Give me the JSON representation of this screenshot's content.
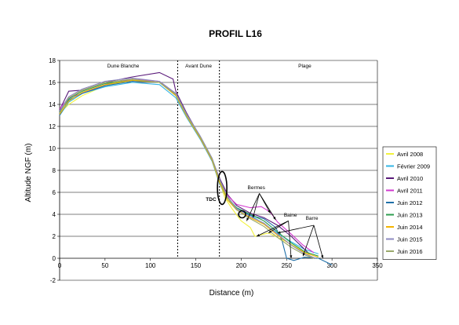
{
  "chart_data": {
    "type": "line",
    "title": "PROFIL L16",
    "xlabel": "Distance (m)",
    "ylabel": "Altitude NGF (m)",
    "xlim": [
      0,
      350
    ],
    "ylim": [
      -2,
      18
    ],
    "xticks": [
      0,
      50,
      100,
      150,
      200,
      250,
      300,
      350
    ],
    "yticks": [
      -2,
      0,
      2,
      4,
      6,
      8,
      10,
      12,
      14,
      16,
      18
    ],
    "grid": "horizontal",
    "legend_position": "right",
    "zones": [
      {
        "label": "Dune Blanche",
        "x_center": 70
      },
      {
        "label": "Avant Dune",
        "x_center": 153
      },
      {
        "label": "Plage",
        "x_center": 270
      }
    ],
    "zone_boundaries": [
      130,
      176
    ],
    "annotations": [
      "Bermes",
      "TDC",
      "Baine",
      "Barre"
    ],
    "series": [
      {
        "name": "Avril 2008",
        "color": "#f2f23c",
        "points": [
          [
            0,
            13.2
          ],
          [
            10,
            14.0
          ],
          [
            25,
            14.8
          ],
          [
            50,
            15.7
          ],
          [
            80,
            16.2
          ],
          [
            110,
            16.0
          ],
          [
            128,
            15.0
          ],
          [
            140,
            13.0
          ],
          [
            155,
            11.0
          ],
          [
            168,
            9.0
          ],
          [
            176,
            7.0
          ],
          [
            182,
            5.5
          ],
          [
            190,
            4.5
          ],
          [
            200,
            3.4
          ],
          [
            210,
            2.8
          ],
          [
            215,
            2.0
          ],
          [
            230,
            2.3
          ],
          [
            250,
            1.5
          ],
          [
            265,
            0.8
          ],
          [
            280,
            0.0
          ]
        ]
      },
      {
        "name": "Février 2009",
        "color": "#33b5e5",
        "points": [
          [
            0,
            13.0
          ],
          [
            10,
            14.2
          ],
          [
            25,
            15.0
          ],
          [
            50,
            15.6
          ],
          [
            80,
            16.0
          ],
          [
            110,
            15.8
          ],
          [
            128,
            14.6
          ],
          [
            140,
            12.8
          ],
          [
            155,
            10.8
          ],
          [
            168,
            8.8
          ],
          [
            176,
            6.8
          ],
          [
            185,
            5.3
          ],
          [
            195,
            4.6
          ],
          [
            205,
            4.2
          ],
          [
            220,
            3.4
          ],
          [
            240,
            2.3
          ],
          [
            255,
            1.5
          ],
          [
            270,
            0.8
          ],
          [
            285,
            0.4
          ]
        ]
      },
      {
        "name": "Avril 2010",
        "color": "#5a1a7a",
        "points": [
          [
            0,
            13.5
          ],
          [
            10,
            15.2
          ],
          [
            25,
            15.3
          ],
          [
            50,
            16.0
          ],
          [
            80,
            16.5
          ],
          [
            110,
            16.9
          ],
          [
            125,
            16.3
          ],
          [
            128,
            15.2
          ],
          [
            140,
            13.2
          ],
          [
            155,
            11.0
          ],
          [
            168,
            9.0
          ],
          [
            176,
            7.3
          ],
          [
            185,
            5.8
          ],
          [
            195,
            4.8
          ],
          [
            210,
            4.1
          ],
          [
            225,
            3.7
          ],
          [
            240,
            3.0
          ],
          [
            255,
            2.0
          ],
          [
            265,
            1.2
          ],
          [
            275,
            0.4
          ]
        ]
      },
      {
        "name": "Avril 2011",
        "color": "#d238cf",
        "points": [
          [
            0,
            13.6
          ],
          [
            10,
            14.6
          ],
          [
            25,
            15.0
          ],
          [
            50,
            15.8
          ],
          [
            80,
            16.3
          ],
          [
            110,
            16.1
          ],
          [
            128,
            15.0
          ],
          [
            140,
            13.0
          ],
          [
            155,
            10.9
          ],
          [
            168,
            8.9
          ],
          [
            176,
            7.1
          ],
          [
            185,
            5.7
          ],
          [
            195,
            4.9
          ],
          [
            210,
            4.6
          ],
          [
            222,
            4.7
          ],
          [
            232,
            4.2
          ],
          [
            240,
            3.3
          ],
          [
            255,
            2.2
          ],
          [
            268,
            1.2
          ],
          [
            280,
            0.5
          ]
        ]
      },
      {
        "name": "Juin 2012",
        "color": "#1f6fa8",
        "points": [
          [
            0,
            13.0
          ],
          [
            10,
            14.4
          ],
          [
            25,
            15.0
          ],
          [
            50,
            15.7
          ],
          [
            80,
            16.1
          ],
          [
            110,
            16.0
          ],
          [
            128,
            14.8
          ],
          [
            140,
            12.9
          ],
          [
            155,
            10.9
          ],
          [
            168,
            8.9
          ],
          [
            176,
            7.0
          ],
          [
            185,
            5.6
          ],
          [
            195,
            4.5
          ],
          [
            210,
            3.9
          ],
          [
            225,
            3.6
          ],
          [
            238,
            2.8
          ],
          [
            245,
            1.6
          ],
          [
            250,
            0.0
          ],
          [
            258,
            -0.2
          ],
          [
            270,
            0.1
          ],
          [
            285,
            0.0
          ],
          [
            300,
            -0.6
          ]
        ]
      },
      {
        "name": "Juin 2013",
        "color": "#2e9e4f",
        "points": [
          [
            0,
            13.3
          ],
          [
            10,
            14.5
          ],
          [
            25,
            15.2
          ],
          [
            50,
            15.9
          ],
          [
            80,
            16.2
          ],
          [
            110,
            16.0
          ],
          [
            128,
            14.9
          ],
          [
            140,
            13.0
          ],
          [
            155,
            11.0
          ],
          [
            168,
            9.0
          ],
          [
            176,
            7.0
          ],
          [
            185,
            5.5
          ],
          [
            195,
            4.6
          ],
          [
            210,
            4.0
          ],
          [
            225,
            3.4
          ],
          [
            240,
            2.4
          ],
          [
            255,
            1.4
          ],
          [
            270,
            0.6
          ],
          [
            285,
            0.2
          ]
        ]
      },
      {
        "name": "Juin 2014",
        "color": "#f5b400",
        "points": [
          [
            0,
            13.1
          ],
          [
            10,
            14.3
          ],
          [
            25,
            15.1
          ],
          [
            50,
            15.8
          ],
          [
            80,
            16.2
          ],
          [
            110,
            16.0
          ],
          [
            128,
            14.8
          ],
          [
            140,
            12.9
          ],
          [
            155,
            10.9
          ],
          [
            168,
            8.9
          ],
          [
            176,
            6.9
          ],
          [
            185,
            5.3
          ],
          [
            195,
            4.4
          ],
          [
            210,
            3.7
          ],
          [
            225,
            3.1
          ],
          [
            240,
            2.1
          ],
          [
            255,
            1.2
          ],
          [
            270,
            0.5
          ],
          [
            285,
            0.1
          ]
        ]
      },
      {
        "name": "Juin 2015",
        "color": "#8e8ac0",
        "points": [
          [
            0,
            13.4
          ],
          [
            10,
            14.7
          ],
          [
            25,
            15.4
          ],
          [
            50,
            16.1
          ],
          [
            80,
            16.4
          ],
          [
            110,
            16.1
          ],
          [
            128,
            15.0
          ],
          [
            140,
            13.1
          ],
          [
            155,
            11.1
          ],
          [
            168,
            9.1
          ],
          [
            176,
            7.2
          ],
          [
            185,
            5.6
          ],
          [
            195,
            4.5
          ],
          [
            210,
            3.8
          ],
          [
            225,
            3.2
          ],
          [
            240,
            2.2
          ],
          [
            255,
            1.2
          ],
          [
            270,
            0.4
          ],
          [
            282,
            0.0
          ]
        ]
      },
      {
        "name": "Juin 2016",
        "color": "#9aa86a",
        "points": [
          [
            0,
            13.2
          ],
          [
            10,
            14.6
          ],
          [
            25,
            15.3
          ],
          [
            50,
            16.0
          ],
          [
            80,
            16.3
          ],
          [
            110,
            16.0
          ],
          [
            128,
            14.9
          ],
          [
            140,
            13.0
          ],
          [
            155,
            11.0
          ],
          [
            168,
            9.0
          ],
          [
            176,
            7.1
          ],
          [
            185,
            5.5
          ],
          [
            195,
            4.4
          ],
          [
            210,
            3.6
          ],
          [
            225,
            2.9
          ],
          [
            240,
            1.9
          ],
          [
            255,
            1.0
          ],
          [
            270,
            0.3
          ],
          [
            280,
            0.0
          ]
        ]
      }
    ]
  }
}
